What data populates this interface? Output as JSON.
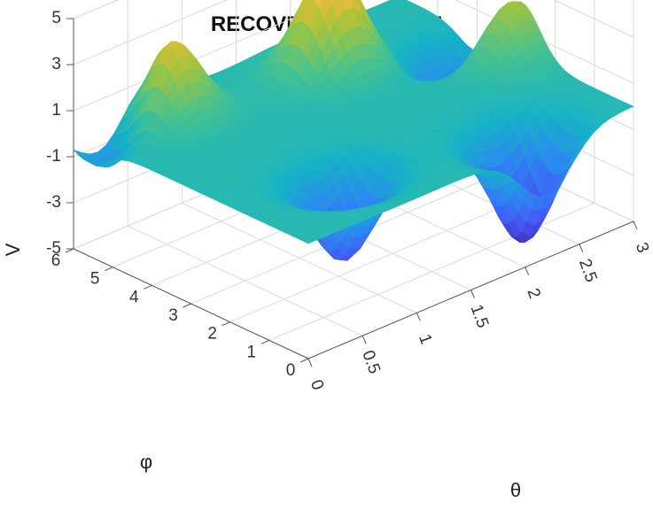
{
  "chart_data": {
    "type": "surface3d",
    "title": "RECOVERED SOURCE",
    "xlabel": "θ",
    "ylabel": "φ",
    "zlabel": "V",
    "xlim": [
      0,
      3
    ],
    "ylim": [
      0,
      6
    ],
    "zlim": [
      -5,
      5
    ],
    "x_ticks": [
      "0",
      "0.5",
      "1",
      "1.5",
      "2",
      "2.5",
      "3"
    ],
    "y_ticks": [
      "0",
      "1",
      "2",
      "3",
      "4",
      "5",
      "6"
    ],
    "z_ticks": [
      "-5",
      "-3",
      "-1",
      "1",
      "3",
      "5"
    ],
    "colormap": "parula",
    "grid": true,
    "features": [
      {
        "kind": "peak",
        "theta": 0.6,
        "phi": 5.3,
        "value": 4.0
      },
      {
        "kind": "peak",
        "theta": 1.9,
        "phi": 4.7,
        "value": 4.6
      },
      {
        "kind": "peak",
        "theta": 2.9,
        "phi": 2.9,
        "value": 2.6
      },
      {
        "kind": "trough",
        "theta": 2.2,
        "phi": 0.6,
        "value": -4.8
      },
      {
        "kind": "trough",
        "theta": 0.9,
        "phi": 1.6,
        "value": -3.8
      },
      {
        "kind": "trough",
        "theta": 0.3,
        "phi": 5.6,
        "value": -2.4
      },
      {
        "kind": "trough",
        "theta": 2.7,
        "phi": 3.9,
        "value": -2.3
      }
    ]
  }
}
